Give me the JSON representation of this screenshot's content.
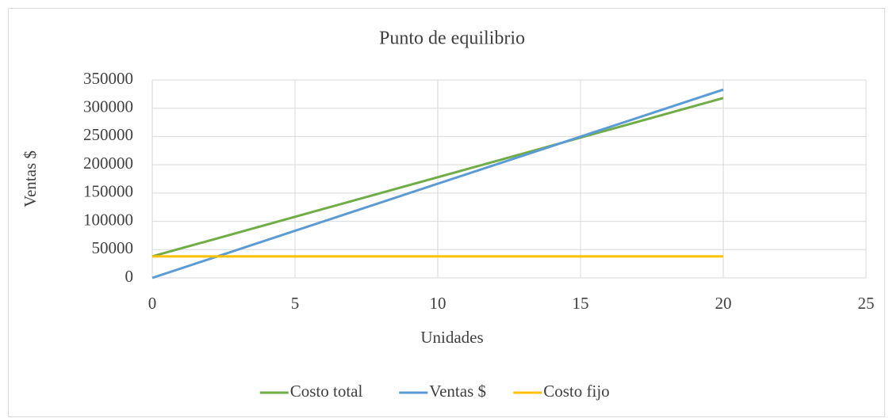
{
  "chart_data": {
    "type": "line",
    "title": "Punto de equilibrio",
    "x_label": "Unidades",
    "y_label": "Ventas $",
    "x": [
      0,
      20
    ],
    "series": [
      {
        "name": "Costo total",
        "color": "#70ad47",
        "values": [
          38000,
          318000
        ]
      },
      {
        "name": "Ventas $",
        "color": "#5b9bd5",
        "values": [
          0,
          333000
        ]
      },
      {
        "name": "Costo fijo",
        "color": "#ffc000",
        "values": [
          38000,
          38000
        ]
      }
    ],
    "xlim": [
      0,
      25
    ],
    "xticks": [
      0,
      5,
      10,
      15,
      20,
      25
    ],
    "ylim": [
      0,
      350000
    ],
    "yticks": [
      0,
      50000,
      100000,
      150000,
      200000,
      250000,
      300000,
      350000
    ],
    "grid": true,
    "legend": "bottom"
  }
}
